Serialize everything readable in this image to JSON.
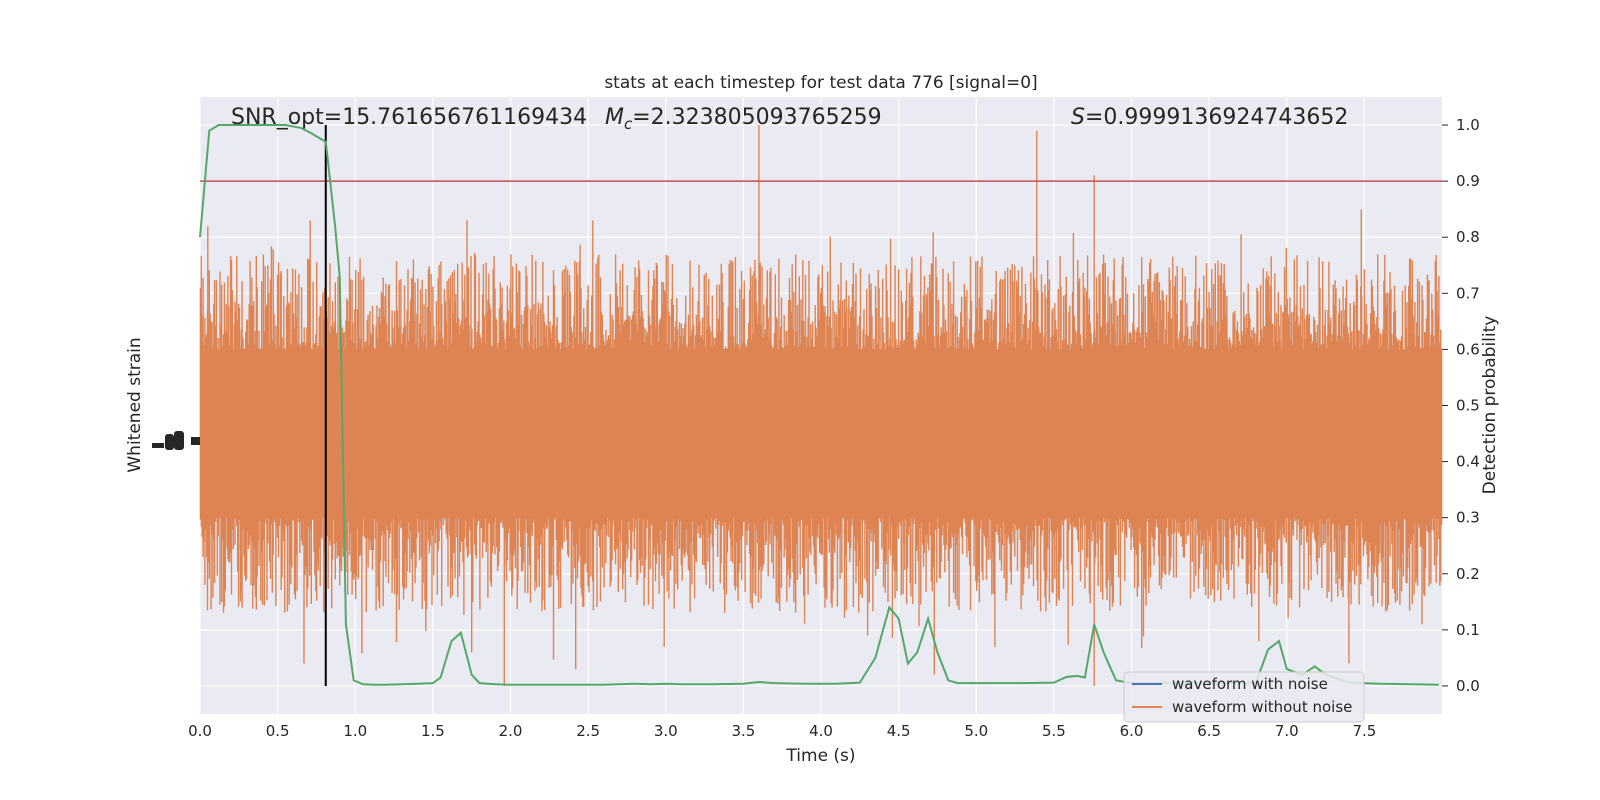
{
  "chart_data": {
    "type": "line",
    "title": "stats at each timestep for test data 776 [signal=0]",
    "xlabel": "Time (s)",
    "ylabel_left": "Whitened strain",
    "ylabel_right": "Detection probability",
    "xlim": [
      0,
      8
    ],
    "ylim_right": [
      -0.05,
      1.05
    ],
    "x_ticks": [
      "0.0",
      "0.5",
      "1.0",
      "1.5",
      "2.0",
      "2.5",
      "3.0",
      "3.5",
      "4.0",
      "4.5",
      "5.0",
      "5.5",
      "6.0",
      "6.5",
      "7.0",
      "7.5"
    ],
    "y_ticks_right": [
      "0.0",
      "0.1",
      "0.2",
      "0.3",
      "0.4",
      "0.5",
      "0.6",
      "0.7",
      "0.8",
      "0.9",
      "1.0"
    ],
    "left_axis_note": "left-axis tick labels overlap and are illegible",
    "annotations": {
      "snr": "SNR_opt=15.761656761169434",
      "mc_symbol": "M",
      "mc_sub": "c",
      "mc_value": "=2.323805093765259",
      "s_symbol": "S",
      "s_value": "=0.9999136924743652"
    },
    "threshold": 0.9,
    "vertical_marker_time": 0.81,
    "legend": [
      "waveform with noise",
      "waveform without noise"
    ],
    "legend_position": "lower-right",
    "colors": {
      "noise": "#dd8452",
      "clean": "#4c72b0",
      "probability": "#55a868",
      "threshold": "#c44e52",
      "marker": "#000000",
      "background": "#eaeaf2",
      "grid": "#ffffff"
    },
    "strain_band": {
      "core_low": 0.3,
      "core_high": 0.6,
      "spike_min": 0.0,
      "spike_max": 1.0
    },
    "strain_spikes": [
      {
        "t": 3.6,
        "v": 1.0
      },
      {
        "t": 5.39,
        "v": 0.99
      },
      {
        "t": 5.76,
        "v": 0.91
      },
      {
        "t": 7.48,
        "v": 0.85
      },
      {
        "t": 2.53,
        "v": 0.83
      },
      {
        "t": 1.72,
        "v": 0.83
      },
      {
        "t": 0.05,
        "v": 0.82
      },
      {
        "t": 0.71,
        "v": 0.83
      },
      {
        "t": 1.96,
        "v": 0.0
      },
      {
        "t": 2.42,
        "v": 0.03
      },
      {
        "t": 0.67,
        "v": 0.04
      },
      {
        "t": 4.73,
        "v": 0.02
      },
      {
        "t": 5.76,
        "v": 0.0
      },
      {
        "t": 7.4,
        "v": 0.04
      },
      {
        "t": 1.75,
        "v": 0.06
      },
      {
        "t": 6.82,
        "v": 0.08
      },
      {
        "t": 2.99,
        "v": 0.07
      },
      {
        "t": 5.12,
        "v": 0.07
      }
    ],
    "series": [
      {
        "name": "Detection probability",
        "x": [
          0.0,
          0.06,
          0.12,
          0.25,
          0.4,
          0.55,
          0.65,
          0.72,
          0.81,
          0.87,
          0.9,
          0.94,
          0.99,
          1.05,
          1.12,
          1.2,
          1.3,
          1.4,
          1.5,
          1.55,
          1.62,
          1.68,
          1.75,
          1.8,
          1.9,
          2.0,
          2.1,
          2.2,
          2.4,
          2.6,
          2.7,
          2.8,
          2.9,
          3.0,
          3.1,
          3.3,
          3.5,
          3.6,
          3.7,
          3.9,
          4.1,
          4.25,
          4.35,
          4.44,
          4.5,
          4.56,
          4.62,
          4.69,
          4.75,
          4.82,
          4.88,
          4.95,
          5.1,
          5.3,
          5.5,
          5.58,
          5.65,
          5.7,
          5.76,
          5.82,
          5.9,
          6.0,
          6.2,
          6.4,
          6.6,
          6.8,
          6.88,
          6.95,
          7.0,
          7.1,
          7.18,
          7.25,
          7.4,
          7.6,
          7.8,
          7.98
        ],
        "y": [
          0.8,
          0.99,
          1.0,
          1.0,
          1.0,
          1.0,
          0.995,
          0.985,
          0.97,
          0.82,
          0.73,
          0.11,
          0.01,
          0.003,
          0.002,
          0.002,
          0.003,
          0.004,
          0.005,
          0.015,
          0.08,
          0.095,
          0.02,
          0.005,
          0.003,
          0.002,
          0.002,
          0.002,
          0.002,
          0.002,
          0.003,
          0.004,
          0.003,
          0.004,
          0.003,
          0.003,
          0.004,
          0.007,
          0.005,
          0.004,
          0.004,
          0.006,
          0.05,
          0.14,
          0.12,
          0.04,
          0.06,
          0.12,
          0.06,
          0.01,
          0.005,
          0.005,
          0.005,
          0.005,
          0.006,
          0.016,
          0.018,
          0.015,
          0.11,
          0.06,
          0.01,
          0.005,
          0.005,
          0.005,
          0.005,
          0.005,
          0.065,
          0.08,
          0.03,
          0.02,
          0.035,
          0.02,
          0.006,
          0.004,
          0.003,
          0.002
        ]
      }
    ]
  }
}
